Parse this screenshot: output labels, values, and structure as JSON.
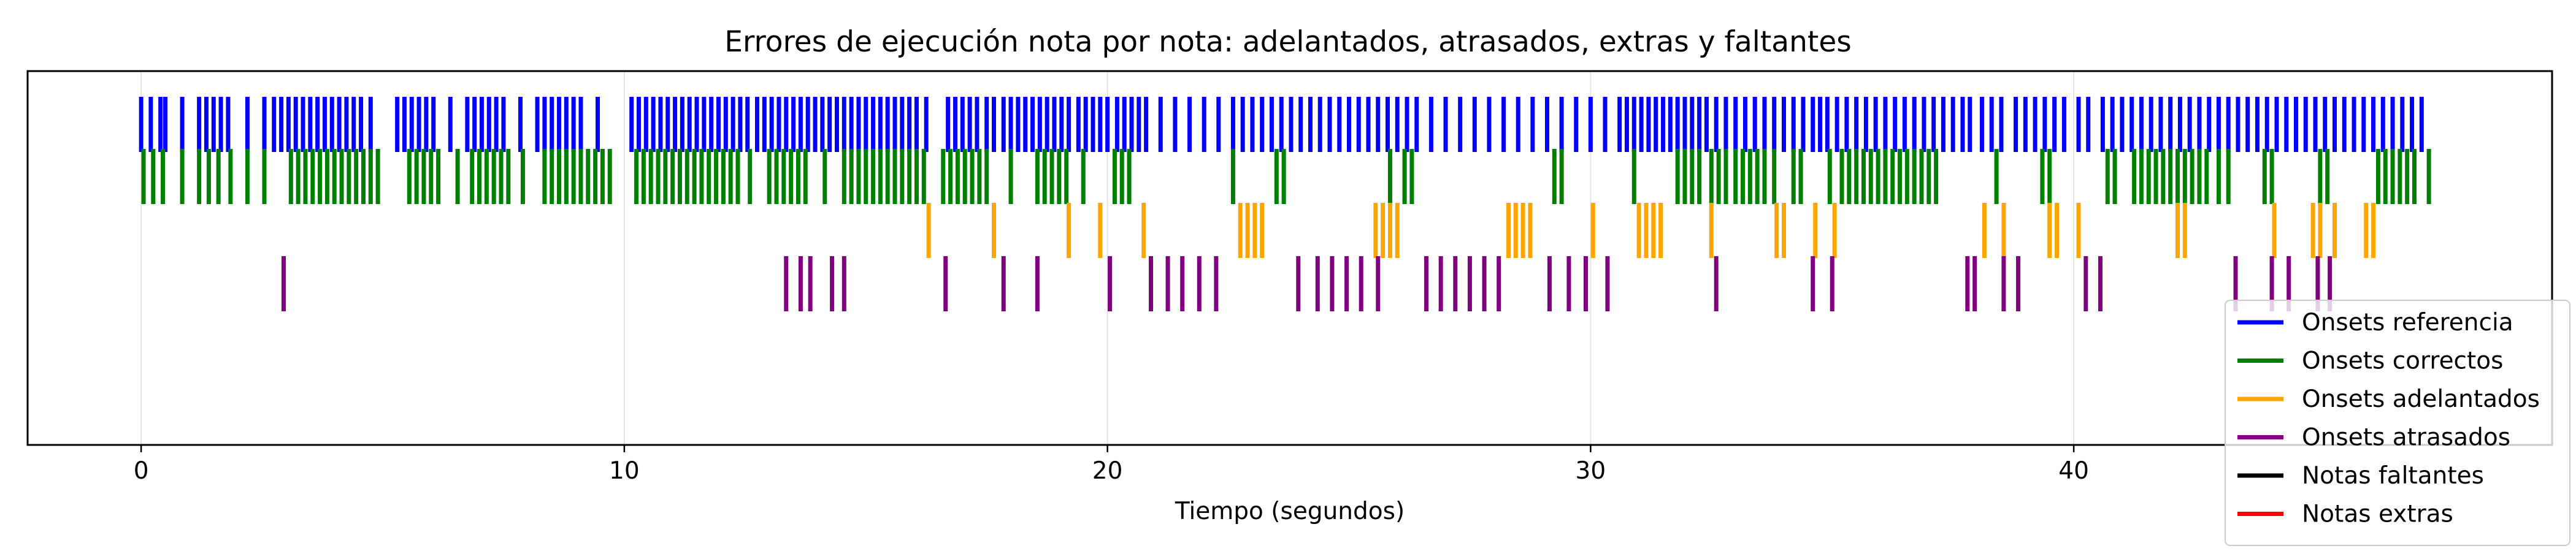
{
  "chart_data": {
    "type": "event_raster",
    "title": "Errores de ejecución nota por nota: adelantados, atrasados, extras y faltantes",
    "xlabel": "Tiempo (segundos)",
    "ylabel": "",
    "xlim": [
      -2.35,
      49.9
    ],
    "xticks": [
      0,
      10,
      20,
      30,
      40
    ],
    "grid": "vertical",
    "legend_position": "bottom-right",
    "series": [
      {
        "name": "Onsets referencia",
        "color": "#0000ff",
        "times": [
          0.0,
          0.2,
          0.4,
          0.5,
          0.85,
          1.2,
          1.35,
          1.5,
          1.65,
          1.8,
          2.2,
          2.55,
          2.75,
          2.9,
          3.05,
          3.2,
          3.35,
          3.5,
          3.65,
          3.8,
          3.95,
          4.1,
          4.25,
          4.4,
          4.55,
          4.75,
          5.3,
          5.45,
          5.6,
          5.75,
          5.9,
          6.05,
          6.4,
          6.75,
          6.9,
          7.05,
          7.2,
          7.35,
          7.5,
          7.85,
          8.2,
          8.35,
          8.5,
          8.65,
          8.8,
          8.95,
          9.1,
          9.45,
          10.15,
          10.3,
          10.45,
          10.6,
          10.75,
          10.9,
          11.05,
          11.2,
          11.35,
          11.5,
          11.65,
          11.8,
          11.95,
          12.1,
          12.25,
          12.4,
          12.55,
          12.75,
          12.9,
          13.05,
          13.2,
          13.35,
          13.5,
          13.65,
          13.8,
          13.95,
          14.1,
          14.25,
          14.4,
          14.55,
          14.7,
          14.85,
          15.0,
          15.15,
          15.3,
          15.45,
          15.6,
          15.75,
          15.9,
          16.05,
          16.25,
          16.7,
          16.85,
          17.0,
          17.15,
          17.3,
          17.5,
          17.65,
          17.85,
          18.0,
          18.15,
          18.3,
          18.45,
          18.6,
          18.75,
          18.9,
          19.05,
          19.2,
          19.4,
          19.55,
          19.7,
          19.85,
          20.0,
          20.2,
          20.35,
          20.5,
          20.65,
          20.8,
          21.1,
          21.4,
          21.7,
          22.0,
          22.3,
          22.6,
          22.8,
          23.0,
          23.2,
          23.4,
          23.6,
          23.8,
          24.0,
          24.2,
          24.4,
          24.6,
          24.8,
          25.0,
          25.2,
          25.4,
          25.6,
          25.8,
          26.0,
          26.2,
          26.4,
          26.7,
          27.0,
          27.3,
          27.6,
          27.9,
          28.2,
          28.5,
          28.8,
          29.1,
          29.4,
          29.7,
          30.0,
          30.3,
          30.6,
          30.75,
          30.9,
          31.05,
          31.2,
          31.35,
          31.5,
          31.65,
          31.8,
          31.95,
          32.1,
          32.25,
          32.4,
          32.6,
          32.8,
          33.0,
          33.2,
          33.4,
          33.6,
          33.8,
          34.0,
          34.2,
          34.4,
          34.6,
          34.75,
          34.9,
          35.1,
          35.3,
          35.5,
          35.7,
          35.9,
          36.1,
          36.3,
          36.5,
          36.7,
          36.9,
          37.1,
          37.3,
          37.5,
          37.7,
          37.85,
          38.1,
          38.3,
          38.5,
          38.8,
          39.0,
          39.2,
          39.4,
          39.6,
          39.8,
          40.1,
          40.3,
          40.6,
          40.8,
          41.0,
          41.2,
          41.4,
          41.6,
          41.8,
          42.0,
          42.2,
          42.4,
          42.6,
          42.8,
          43.0,
          43.2,
          43.4,
          43.6,
          43.8,
          44.0,
          44.2,
          44.4,
          44.6,
          44.8,
          45.0,
          45.2,
          45.4,
          45.6,
          45.8,
          46.0,
          46.2,
          46.4,
          46.6,
          46.8,
          47.0,
          47.2
        ]
      },
      {
        "name": "Onsets correctos",
        "color": "#008000",
        "times": [
          0.05,
          0.25,
          0.45,
          0.85,
          1.2,
          1.4,
          1.6,
          1.85,
          2.2,
          2.55,
          3.1,
          3.25,
          3.4,
          3.55,
          3.7,
          3.85,
          4.0,
          4.15,
          4.3,
          4.45,
          4.6,
          4.75,
          4.9,
          5.55,
          5.7,
          5.85,
          6.0,
          6.15,
          6.55,
          6.85,
          7.0,
          7.15,
          7.3,
          7.45,
          7.6,
          7.9,
          8.35,
          8.5,
          8.65,
          8.8,
          8.95,
          9.1,
          9.25,
          9.4,
          9.55,
          9.7,
          10.25,
          10.4,
          10.55,
          10.7,
          10.85,
          11.0,
          11.15,
          11.3,
          11.45,
          11.6,
          11.75,
          11.9,
          12.05,
          12.2,
          12.35,
          12.6,
          13.0,
          13.15,
          13.3,
          13.45,
          13.6,
          13.75,
          14.15,
          14.55,
          14.7,
          14.85,
          15.0,
          15.15,
          15.3,
          15.45,
          15.6,
          15.75,
          15.9,
          16.05,
          16.2,
          16.6,
          16.75,
          16.9,
          17.05,
          17.2,
          17.35,
          17.5,
          18.0,
          18.55,
          18.7,
          18.85,
          19.0,
          19.15,
          19.5,
          20.15,
          20.3,
          20.45,
          22.6,
          23.5,
          23.65,
          25.85,
          26.15,
          26.3,
          29.25,
          29.4,
          30.9,
          31.8,
          31.95,
          32.1,
          32.25,
          32.5,
          32.65,
          32.8,
          33.0,
          33.15,
          33.3,
          33.45,
          33.6,
          33.8,
          34.2,
          34.35,
          34.95,
          35.2,
          35.35,
          35.5,
          35.65,
          35.8,
          35.95,
          36.1,
          36.25,
          36.4,
          36.55,
          36.7,
          36.85,
          37.0,
          37.15,
          38.4,
          39.35,
          39.5,
          40.7,
          40.85,
          41.25,
          41.4,
          41.55,
          41.7,
          41.85,
          42.0,
          42.15,
          42.3,
          42.45,
          42.6,
          42.75,
          43.0,
          43.2,
          43.95,
          44.1,
          45.1,
          45.25,
          46.3,
          46.45,
          46.6,
          46.75,
          46.9,
          47.05,
          47.35
        ]
      },
      {
        "name": "Onsets adelantados",
        "color": "#ffa500",
        "times": [
          16.3,
          17.65,
          19.2,
          19.85,
          20.75,
          22.75,
          22.9,
          23.05,
          23.2,
          25.55,
          25.7,
          25.85,
          26.0,
          28.3,
          28.45,
          28.6,
          28.75,
          30.05,
          31.0,
          31.15,
          31.3,
          31.45,
          32.5,
          33.85,
          34.0,
          34.65,
          35.05,
          38.15,
          38.55,
          39.5,
          39.65,
          40.1,
          42.15,
          42.3,
          44.15,
          44.95,
          45.1,
          45.4,
          46.05,
          46.2
        ]
      },
      {
        "name": "Onsets atrasados",
        "color": "#800080",
        "times": [
          2.95,
          13.35,
          13.65,
          13.85,
          14.3,
          14.55,
          16.65,
          17.85,
          18.55,
          20.05,
          20.9,
          21.25,
          21.55,
          21.9,
          22.25,
          23.95,
          24.35,
          24.65,
          24.95,
          25.25,
          25.6,
          26.6,
          26.9,
          27.2,
          27.5,
          27.8,
          28.1,
          29.15,
          29.55,
          29.9,
          30.35,
          32.6,
          34.6,
          35.0,
          37.8,
          37.95,
          38.55,
          38.85,
          40.25,
          40.55,
          43.35,
          44.1,
          44.45,
          45.05,
          45.3
        ]
      },
      {
        "name": "Notas faltantes",
        "color": "#000000",
        "times": []
      },
      {
        "name": "Notas extras",
        "color": "#ff0000",
        "times": []
      }
    ]
  }
}
